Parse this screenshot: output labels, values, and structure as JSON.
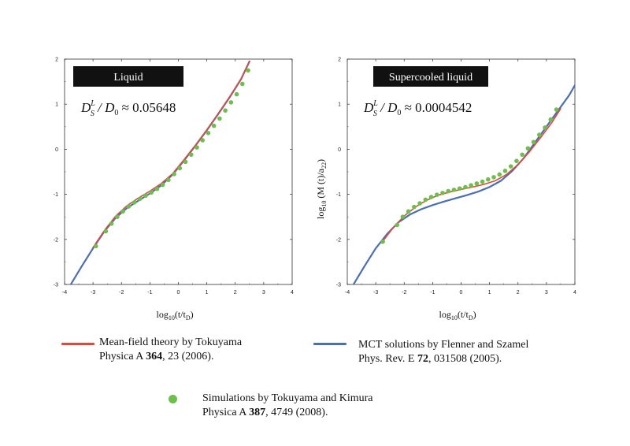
{
  "colors": {
    "mean_field": "#e2483a",
    "mct": "#4a6fb5",
    "simulation": "#6dbf4b",
    "label_box": "#111111"
  },
  "chart_data": [
    {
      "type": "line",
      "panel_label": "Liquid",
      "annotation": {
        "prefix": "D",
        "sub": "S",
        "sup": "L",
        "mid": " / D",
        "sub2": "0",
        "rest": " ≈ 0.05648"
      },
      "xlabel": {
        "pre": "log",
        "sub": "10",
        "mid": "(t/t",
        "sub2": "D",
        "post": ")"
      },
      "ylabel": null,
      "xlim": [
        -4,
        4
      ],
      "ylim": [
        -3,
        2
      ],
      "xticks": [
        "-4",
        "-3",
        "-2",
        "-1",
        "0",
        "1",
        "2",
        "3",
        "4"
      ],
      "yticks": [
        "-3",
        "-2",
        "-1",
        "0",
        "1",
        "2"
      ],
      "grid": false,
      "series": [
        {
          "key": "mct",
          "name": "MCT solutions by Flenner and Szamel",
          "x": [
            -3.8,
            -3.4,
            -3.0,
            -2.6,
            -2.2,
            -1.8,
            -1.4,
            -1.0,
            -0.6,
            -0.2,
            0.2,
            0.6,
            1.0,
            1.4,
            1.8,
            2.2,
            2.5
          ],
          "y": [
            -3.02,
            -2.6,
            -2.2,
            -1.82,
            -1.52,
            -1.3,
            -1.14,
            -0.98,
            -0.8,
            -0.56,
            -0.25,
            0.08,
            0.42,
            0.78,
            1.15,
            1.55,
            1.95
          ]
        },
        {
          "key": "mean_field",
          "name": "Mean-field theory by Tokuyama",
          "x": [
            -3.0,
            -2.6,
            -2.2,
            -1.8,
            -1.4,
            -1.0,
            -0.6,
            -0.2,
            0.2,
            0.6,
            1.0,
            1.4,
            1.8,
            2.2,
            2.5
          ],
          "y": [
            -2.18,
            -1.8,
            -1.48,
            -1.25,
            -1.08,
            -0.93,
            -0.76,
            -0.54,
            -0.23,
            0.09,
            0.43,
            0.79,
            1.16,
            1.56,
            1.95
          ]
        },
        {
          "key": "simulation",
          "name": "Simulations by Tokuyama and Kimura",
          "x": [
            -2.9,
            -2.55,
            -2.35,
            -2.15,
            -1.95,
            -1.75,
            -1.55,
            -1.35,
            -1.15,
            -0.95,
            -0.75,
            -0.55,
            -0.35,
            -0.15,
            0.05,
            0.25,
            0.45,
            0.65,
            0.85,
            1.05,
            1.25,
            1.45,
            1.65,
            1.85,
            2.05,
            2.25,
            2.45
          ],
          "y": [
            -2.15,
            -1.82,
            -1.65,
            -1.5,
            -1.38,
            -1.27,
            -1.18,
            -1.1,
            -1.03,
            -0.96,
            -0.88,
            -0.79,
            -0.68,
            -0.55,
            -0.42,
            -0.28,
            -0.12,
            0.04,
            0.2,
            0.36,
            0.52,
            0.68,
            0.86,
            1.04,
            1.22,
            1.45,
            1.75
          ]
        }
      ]
    },
    {
      "type": "line",
      "panel_label": "Supercooled liquid",
      "annotation": {
        "prefix": "D",
        "sub": "S",
        "sup": "L",
        "mid": " / D",
        "sub2": "0",
        "rest": " ≈ 0.0004542"
      },
      "xlabel": {
        "pre": "log",
        "sub": "10",
        "mid": "(t/t",
        "sub2": "D",
        "post": ")"
      },
      "ylabel": {
        "pre": "log",
        "sub": "10",
        "mid": " (M (t)/a",
        "sub2": "2",
        "post": ")",
        "extra_sub": "2"
      },
      "xlim": [
        -4,
        4
      ],
      "ylim": [
        -3,
        2
      ],
      "xticks": [
        "-4",
        "-3",
        "-2",
        "-1",
        "0",
        "1",
        "2",
        "3",
        "4"
      ],
      "yticks": [
        "-3",
        "-2",
        "-1",
        "0",
        "1",
        "2"
      ],
      "grid": false,
      "series": [
        {
          "key": "mct",
          "name": "MCT solutions by Flenner and Szamel",
          "x": [
            -3.8,
            -3.4,
            -3.0,
            -2.6,
            -2.2,
            -1.8,
            -1.4,
            -1.0,
            -0.6,
            -0.2,
            0.2,
            0.6,
            1.0,
            1.4,
            1.8,
            2.2,
            2.6,
            3.0,
            3.4,
            3.8,
            4.0
          ],
          "y": [
            -3.02,
            -2.6,
            -2.2,
            -1.88,
            -1.62,
            -1.45,
            -1.33,
            -1.24,
            -1.16,
            -1.09,
            -1.02,
            -0.94,
            -0.84,
            -0.7,
            -0.48,
            -0.2,
            0.15,
            0.5,
            0.85,
            1.2,
            1.42
          ]
        },
        {
          "key": "mean_field",
          "name": "Mean-field theory by Tokuyama",
          "x": [
            -2.8,
            -2.4,
            -2.0,
            -1.6,
            -1.2,
            -0.8,
            -0.4,
            0.0,
            0.4,
            0.8,
            1.2,
            1.6,
            2.0,
            2.4,
            2.8,
            3.2,
            3.5
          ],
          "y": [
            -2.08,
            -1.75,
            -1.48,
            -1.28,
            -1.13,
            -1.02,
            -0.95,
            -0.89,
            -0.84,
            -0.78,
            -0.7,
            -0.56,
            -0.34,
            -0.06,
            0.26,
            0.6,
            0.9
          ]
        },
        {
          "key": "simulation",
          "name": "Simulations by Tokuyama and Kimura",
          "x": [
            -2.75,
            -2.25,
            -2.05,
            -1.85,
            -1.65,
            -1.45,
            -1.25,
            -1.05,
            -0.85,
            -0.65,
            -0.45,
            -0.25,
            -0.05,
            0.15,
            0.35,
            0.55,
            0.75,
            0.95,
            1.15,
            1.35,
            1.55,
            1.75,
            1.95,
            2.15,
            2.35,
            2.55,
            2.75,
            2.95,
            3.15,
            3.35
          ],
          "y": [
            -2.05,
            -1.68,
            -1.5,
            -1.38,
            -1.28,
            -1.2,
            -1.12,
            -1.06,
            -1.01,
            -0.97,
            -0.93,
            -0.9,
            -0.87,
            -0.84,
            -0.8,
            -0.76,
            -0.72,
            -0.67,
            -0.62,
            -0.56,
            -0.48,
            -0.38,
            -0.26,
            -0.12,
            0.02,
            0.16,
            0.32,
            0.48,
            0.66,
            0.88
          ]
        }
      ]
    }
  ],
  "legend": {
    "mean_field": {
      "line1": "Mean-field theory by Tokuyama",
      "journal": "Physica A ",
      "volume": "364",
      "rest": ", 23 (2006)."
    },
    "mct": {
      "line1": "MCT solutions by Flenner and Szamel",
      "journal": "Phys. Rev. E ",
      "volume": "72",
      "rest": ", 031508 (2005)."
    },
    "simulation": {
      "line1": "Simulations by Tokuyama and Kimura",
      "journal": "Physica A ",
      "volume": "387",
      "rest": ", 4749 (2008)."
    }
  }
}
